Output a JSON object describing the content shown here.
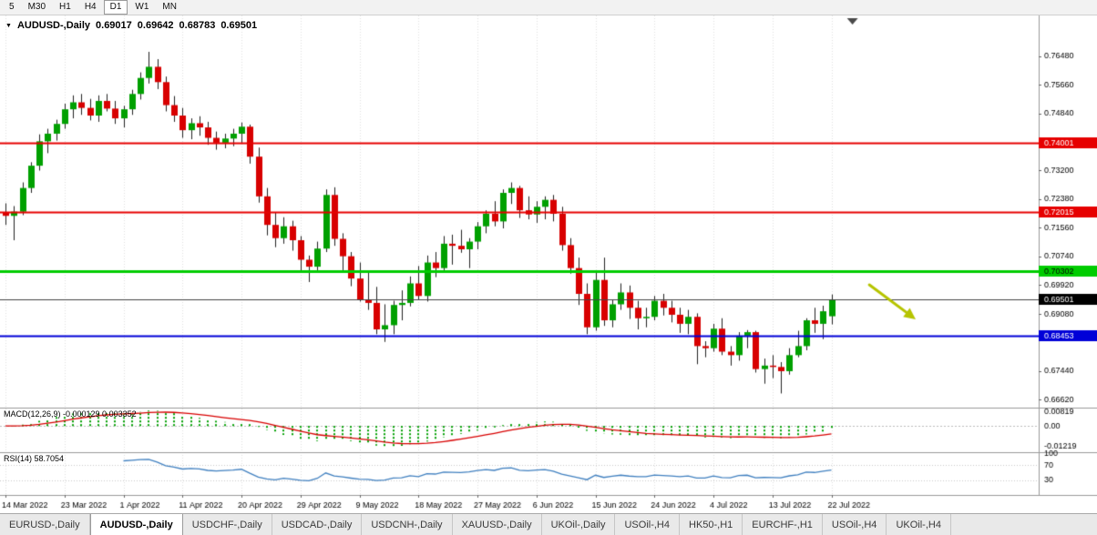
{
  "toolbar": {
    "timeframes": [
      {
        "label": "5",
        "active": false
      },
      {
        "label": "M30",
        "active": false
      },
      {
        "label": "H1",
        "active": false
      },
      {
        "label": "H4",
        "active": false
      },
      {
        "label": "D1",
        "active": true
      },
      {
        "label": "W1",
        "active": false
      },
      {
        "label": "MN",
        "active": false
      }
    ]
  },
  "chart_header": {
    "symbol_period": "AUDUSD-,Daily",
    "open": "0.69017",
    "high": "0.69642",
    "low": "0.68783",
    "close": "0.69501"
  },
  "indicators": {
    "macd_label": "MACD(12,26,9) -0.000129 0.003352",
    "rsi_label": "RSI(14) 58.7054"
  },
  "tabs": {
    "items": [
      {
        "label": "EURUSD-,Daily",
        "active": false
      },
      {
        "label": "AUDUSD-,Daily",
        "active": true
      },
      {
        "label": "USDCHF-,Daily",
        "active": false
      },
      {
        "label": "USDCAD-,Daily",
        "active": false
      },
      {
        "label": "USDCNH-,Daily",
        "active": false
      },
      {
        "label": "XAUUSD-,Daily",
        "active": false
      },
      {
        "label": "UKOil-,Daily",
        "active": false
      },
      {
        "label": "USOil-,H4",
        "active": false
      },
      {
        "label": "HK50-,H1",
        "active": false
      },
      {
        "label": "EURCHF-,H1",
        "active": false
      },
      {
        "label": "USOil-,H4",
        "active": false
      },
      {
        "label": "UKOil-,H4",
        "active": false
      }
    ]
  },
  "chart_data": {
    "type": "candlestick",
    "symbol": "AUDUSD",
    "timeframe": "Daily",
    "x_tick_labels": [
      "14 Mar 2022",
      "23 Mar 2022",
      "1 Apr 2022",
      "11 Apr 2022",
      "20 Apr 2022",
      "29 Apr 2022",
      "9 May 2022",
      "18 May 2022",
      "27 May 2022",
      "6 Jun 2022",
      "15 Jun 2022",
      "24 Jun 2022",
      "4 Jul 2022",
      "13 Jul 2022",
      "22 Jul 2022"
    ],
    "x_tick_every": 7,
    "price_range": [
      0.6655,
      0.7755
    ],
    "y_axis_ticks": [
      {
        "v": 0.7648,
        "label": "0.76480"
      },
      {
        "v": 0.7566,
        "label": "0.75660"
      },
      {
        "v": 0.7484,
        "label": "0.74840"
      },
      {
        "v": 0.732,
        "label": "0.73200"
      },
      {
        "v": 0.7238,
        "label": "0.72380"
      },
      {
        "v": 0.7156,
        "label": "0.71560"
      },
      {
        "v": 0.7074,
        "label": "0.70740"
      },
      {
        "v": 0.6992,
        "label": "0.69920"
      },
      {
        "v": 0.6908,
        "label": "0.69080"
      },
      {
        "v": 0.6744,
        "label": "0.67440"
      },
      {
        "v": 0.6662,
        "label": "0.66620"
      }
    ],
    "hlines": [
      {
        "price": 0.74001,
        "label": "0.74001",
        "color": "#e60000",
        "width": 2,
        "text_color": "#ffffff"
      },
      {
        "price": 0.72015,
        "label": "0.72015",
        "color": "#e60000",
        "width": 2,
        "text_color": "#ffffff"
      },
      {
        "price": 0.70302,
        "label": "0.70302",
        "color": "#00cc00",
        "width": 3,
        "text_color": "#000000"
      },
      {
        "price": 0.68453,
        "label": "0.68453",
        "color": "#0000d8",
        "width": 2,
        "text_color": "#ffffff"
      }
    ],
    "last_price_line": {
      "price": 0.69501,
      "label": "0.69501"
    },
    "up_color": "#00a000",
    "down_color": "#d80000",
    "wick_color": "#222222",
    "candles": [
      [
        0.72,
        0.7226,
        0.7164,
        0.719
      ],
      [
        0.719,
        0.7218,
        0.712,
        0.7202
      ],
      [
        0.7202,
        0.7286,
        0.7192,
        0.727
      ],
      [
        0.727,
        0.7344,
        0.7256,
        0.7334
      ],
      [
        0.7334,
        0.7424,
        0.732,
        0.7404
      ],
      [
        0.7404,
        0.744,
        0.737,
        0.7426
      ],
      [
        0.7426,
        0.7466,
        0.7406,
        0.7454
      ],
      [
        0.7454,
        0.7512,
        0.744,
        0.7496
      ],
      [
        0.7496,
        0.7536,
        0.747,
        0.7516
      ],
      [
        0.7516,
        0.754,
        0.748,
        0.75
      ],
      [
        0.75,
        0.7526,
        0.7464,
        0.7478
      ],
      [
        0.7478,
        0.7536,
        0.746,
        0.752
      ],
      [
        0.752,
        0.754,
        0.749,
        0.7498
      ],
      [
        0.7498,
        0.752,
        0.7454,
        0.747
      ],
      [
        0.747,
        0.7506,
        0.7444,
        0.7496
      ],
      [
        0.7496,
        0.7552,
        0.748,
        0.754
      ],
      [
        0.754,
        0.7602,
        0.7524,
        0.7586
      ],
      [
        0.7586,
        0.7661,
        0.757,
        0.7618
      ],
      [
        0.7618,
        0.764,
        0.7554,
        0.7574
      ],
      [
        0.7574,
        0.759,
        0.749,
        0.7508
      ],
      [
        0.7508,
        0.7534,
        0.746,
        0.7478
      ],
      [
        0.7478,
        0.75,
        0.7414,
        0.7436
      ],
      [
        0.7436,
        0.747,
        0.741,
        0.7456
      ],
      [
        0.7456,
        0.7476,
        0.742,
        0.7444
      ],
      [
        0.7444,
        0.746,
        0.7394,
        0.7414
      ],
      [
        0.7414,
        0.7432,
        0.738,
        0.74
      ],
      [
        0.74,
        0.7426,
        0.7384,
        0.7412
      ],
      [
        0.7412,
        0.744,
        0.739,
        0.7426
      ],
      [
        0.7426,
        0.7458,
        0.74,
        0.7446
      ],
      [
        0.7446,
        0.7452,
        0.734,
        0.736
      ],
      [
        0.736,
        0.7386,
        0.7228,
        0.7246
      ],
      [
        0.7246,
        0.727,
        0.7134,
        0.7164
      ],
      [
        0.7164,
        0.72,
        0.71,
        0.7126
      ],
      [
        0.7126,
        0.7186,
        0.711,
        0.716
      ],
      [
        0.716,
        0.7176,
        0.709,
        0.712
      ],
      [
        0.712,
        0.7132,
        0.703,
        0.7064
      ],
      [
        0.7064,
        0.7076,
        0.7,
        0.7044
      ],
      [
        0.7044,
        0.7116,
        0.7034,
        0.7096
      ],
      [
        0.7096,
        0.7266,
        0.7086,
        0.725
      ],
      [
        0.725,
        0.7272,
        0.7104,
        0.7124
      ],
      [
        0.7124,
        0.714,
        0.7034,
        0.7074
      ],
      [
        0.7074,
        0.7086,
        0.6988,
        0.701
      ],
      [
        0.701,
        0.7056,
        0.6944,
        0.695
      ],
      [
        0.695,
        0.7032,
        0.692,
        0.694
      ],
      [
        0.694,
        0.6986,
        0.685,
        0.6864
      ],
      [
        0.6864,
        0.6936,
        0.6828,
        0.6876
      ],
      [
        0.6876,
        0.6946,
        0.685,
        0.6934
      ],
      [
        0.6934,
        0.6976,
        0.689,
        0.694
      ],
      [
        0.694,
        0.7016,
        0.693,
        0.6996
      ],
      [
        0.6996,
        0.7046,
        0.6948,
        0.696
      ],
      [
        0.696,
        0.7076,
        0.6944,
        0.7056
      ],
      [
        0.7056,
        0.7086,
        0.7014,
        0.704
      ],
      [
        0.704,
        0.7132,
        0.7034,
        0.711
      ],
      [
        0.711,
        0.7136,
        0.705,
        0.7104
      ],
      [
        0.7104,
        0.715,
        0.7084,
        0.7094
      ],
      [
        0.7094,
        0.7126,
        0.704,
        0.7116
      ],
      [
        0.7116,
        0.7172,
        0.7094,
        0.716
      ],
      [
        0.716,
        0.7206,
        0.714,
        0.7196
      ],
      [
        0.7196,
        0.7232,
        0.716,
        0.7174
      ],
      [
        0.7174,
        0.7266,
        0.7154,
        0.7256
      ],
      [
        0.7256,
        0.7286,
        0.7224,
        0.727
      ],
      [
        0.727,
        0.7276,
        0.7184,
        0.7206
      ],
      [
        0.7206,
        0.7246,
        0.718,
        0.7194
      ],
      [
        0.7194,
        0.7232,
        0.717,
        0.7216
      ],
      [
        0.7216,
        0.7246,
        0.718,
        0.7236
      ],
      [
        0.7236,
        0.725,
        0.7174,
        0.7196
      ],
      [
        0.7196,
        0.7216,
        0.709,
        0.7106
      ],
      [
        0.7106,
        0.7126,
        0.7024,
        0.704
      ],
      [
        0.704,
        0.707,
        0.6934,
        0.6966
      ],
      [
        0.6966,
        0.6996,
        0.685,
        0.687
      ],
      [
        0.687,
        0.7026,
        0.686,
        0.7006
      ],
      [
        0.7006,
        0.707,
        0.6874,
        0.689
      ],
      [
        0.689,
        0.695,
        0.687,
        0.6936
      ],
      [
        0.6936,
        0.6996,
        0.692,
        0.697
      ],
      [
        0.697,
        0.699,
        0.6894,
        0.6926
      ],
      [
        0.6926,
        0.6946,
        0.6864,
        0.6896
      ],
      [
        0.6896,
        0.6926,
        0.687,
        0.69
      ],
      [
        0.69,
        0.696,
        0.689,
        0.6946
      ],
      [
        0.6946,
        0.6966,
        0.6904,
        0.6926
      ],
      [
        0.6926,
        0.6946,
        0.6884,
        0.6906
      ],
      [
        0.6906,
        0.6926,
        0.6854,
        0.688
      ],
      [
        0.688,
        0.692,
        0.685,
        0.69
      ],
      [
        0.69,
        0.691,
        0.6764,
        0.6816
      ],
      [
        0.6816,
        0.683,
        0.6784,
        0.681
      ],
      [
        0.681,
        0.688,
        0.68,
        0.6866
      ],
      [
        0.6866,
        0.6896,
        0.679,
        0.68
      ],
      [
        0.68,
        0.6816,
        0.676,
        0.679
      ],
      [
        0.679,
        0.6856,
        0.6774,
        0.6846
      ],
      [
        0.6846,
        0.6862,
        0.681,
        0.6856
      ],
      [
        0.6856,
        0.686,
        0.674,
        0.675
      ],
      [
        0.675,
        0.678,
        0.6708,
        0.676
      ],
      [
        0.676,
        0.679,
        0.6724,
        0.6756
      ],
      [
        0.6756,
        0.677,
        0.668,
        0.6744
      ],
      [
        0.6744,
        0.681,
        0.6734,
        0.679
      ],
      [
        0.679,
        0.686,
        0.6784,
        0.6816
      ],
      [
        0.6816,
        0.6896,
        0.6804,
        0.689
      ],
      [
        0.689,
        0.6926,
        0.6854,
        0.688
      ],
      [
        0.688,
        0.6932,
        0.6836,
        0.6916
      ],
      [
        0.69017,
        0.69642,
        0.68783,
        0.69501
      ]
    ],
    "macd": {
      "fast": 12,
      "slow": 26,
      "signal": 9,
      "range": [
        -0.0138,
        0.0092
      ],
      "axis_ticks": [
        {
          "v": 0.00819,
          "label": "0.00819"
        },
        {
          "v": 0,
          "label": "0.00"
        },
        {
          "v": -0.01219,
          "label": "-0.01219"
        }
      ],
      "hist_color": "#00a000",
      "signal_color": "#d80000"
    },
    "rsi": {
      "period": 14,
      "range": [
        0,
        100
      ],
      "levels": [
        70,
        30
      ],
      "axis_ticks": [
        {
          "v": 100,
          "label": "100"
        },
        {
          "v": 70,
          "label": "70"
        },
        {
          "v": 30,
          "label": "30"
        }
      ],
      "line_color": "#4080c0"
    },
    "annotation_arrow": {
      "from_index": 102.5,
      "from_price": 0.6992,
      "to_index": 108,
      "to_price": 0.6893,
      "color": "#b6c400",
      "width": 3
    },
    "shift_marker_index": 100.5
  }
}
